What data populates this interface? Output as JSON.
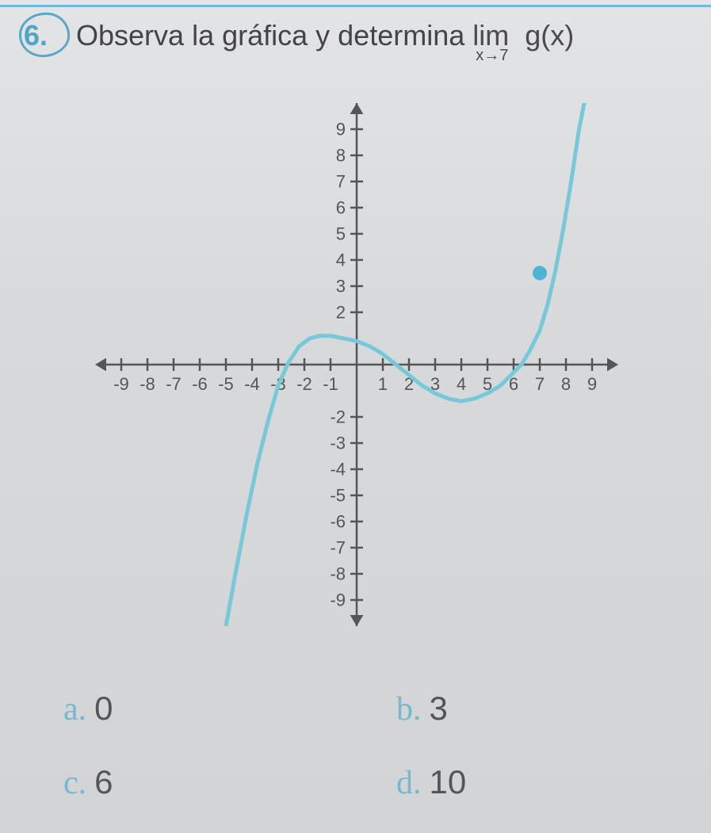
{
  "question": {
    "number": "6.",
    "text_before": "Observa la gráfica y determina ",
    "lim_label": "lim",
    "lim_sub": "x→7",
    "fn": "g(x)"
  },
  "options": {
    "a": {
      "letter": "a.",
      "value": "0"
    },
    "b": {
      "letter": "b.",
      "value": "3"
    },
    "c": {
      "letter": "c.",
      "value": "6"
    },
    "d": {
      "letter": "d.",
      "value": "10"
    }
  },
  "graph": {
    "type": "line",
    "background_color": "#d8dadc",
    "axis_color": "#555555",
    "curve_color": "#77c8d9",
    "curve_width": 5,
    "point_color": "#4fb3d3",
    "point_radius": 9,
    "tick_fontsize": 22,
    "tick_length": 8,
    "arrow_size": 14,
    "xlim": [
      -10,
      10
    ],
    "ylim": [
      -10,
      10
    ],
    "xtick_labels": [
      -9,
      -8,
      -7,
      -6,
      -5,
      -4,
      -3,
      -2,
      -1,
      1,
      2,
      3,
      4,
      5,
      6,
      7,
      8,
      9
    ],
    "ytick_pos": {
      "-9": "-9",
      "-8": "-8",
      "-7": "-7",
      "-6": "-6",
      "-5": "-5",
      "-4": "-4",
      "-3": "-3",
      "-2": "-2",
      "2": "2",
      "3": "3",
      "4": "4",
      "5": "5",
      "6": "6",
      "7": "7",
      "8": "8",
      "9": "9"
    },
    "curve_points": [
      [
        -5.0,
        -10.0
      ],
      [
        -4.6,
        -7.8
      ],
      [
        -4.2,
        -5.7
      ],
      [
        -3.8,
        -3.8
      ],
      [
        -3.4,
        -2.2
      ],
      [
        -3.0,
        -0.8
      ],
      [
        -2.6,
        0.1
      ],
      [
        -2.2,
        0.7
      ],
      [
        -1.8,
        1.0
      ],
      [
        -1.4,
        1.1
      ],
      [
        -1.0,
        1.1
      ],
      [
        -0.5,
        1.0
      ],
      [
        0.0,
        0.9
      ],
      [
        0.5,
        0.7
      ],
      [
        1.0,
        0.4
      ],
      [
        1.5,
        0.0
      ],
      [
        2.0,
        -0.4
      ],
      [
        2.5,
        -0.8
      ],
      [
        3.0,
        -1.1
      ],
      [
        3.5,
        -1.3
      ],
      [
        4.0,
        -1.4
      ],
      [
        4.5,
        -1.3
      ],
      [
        5.0,
        -1.1
      ],
      [
        5.5,
        -0.8
      ],
      [
        6.0,
        -0.3
      ],
      [
        6.3,
        0.0
      ],
      [
        6.6,
        0.5
      ],
      [
        7.0,
        1.3
      ],
      [
        7.3,
        2.3
      ],
      [
        7.6,
        3.6
      ],
      [
        7.9,
        5.2
      ],
      [
        8.2,
        7.0
      ],
      [
        8.5,
        9.0
      ],
      [
        8.7,
        10.0
      ]
    ],
    "isolated_point": [
      7,
      3.5
    ]
  },
  "colors": {
    "accent": "#5aa8c9",
    "text": "#4a4a4a"
  }
}
